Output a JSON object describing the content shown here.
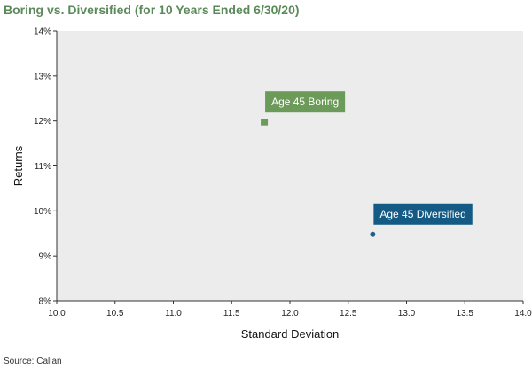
{
  "chart_data": {
    "type": "scatter",
    "title": "Boring vs. Diversified (for 10 Years Ended 6/30/20)",
    "xlabel": "Standard Deviation",
    "ylabel": "Returns",
    "xlim": [
      10.0,
      14.0
    ],
    "ylim": [
      8,
      14
    ],
    "x_ticks": [
      "10.0",
      "10.5",
      "11.0",
      "11.5",
      "12.0",
      "12.5",
      "13.0",
      "13.5",
      "14.0"
    ],
    "y_ticks": [
      "8%",
      "9%",
      "10%",
      "11%",
      "12%",
      "13%",
      "14%"
    ],
    "grid": false,
    "background": "#ececec",
    "points": [
      {
        "name": "Age 45 Boring",
        "x": 11.78,
        "y": 11.97,
        "marker": "square",
        "color": "#6c9a58",
        "label_color": "#6c9a58"
      },
      {
        "name": "Age 45 Diversified",
        "x": 12.71,
        "y": 9.48,
        "marker": "circle",
        "color": "#1f5f8c",
        "label_color": "#135a85"
      }
    ]
  },
  "source": "Source: Callan"
}
